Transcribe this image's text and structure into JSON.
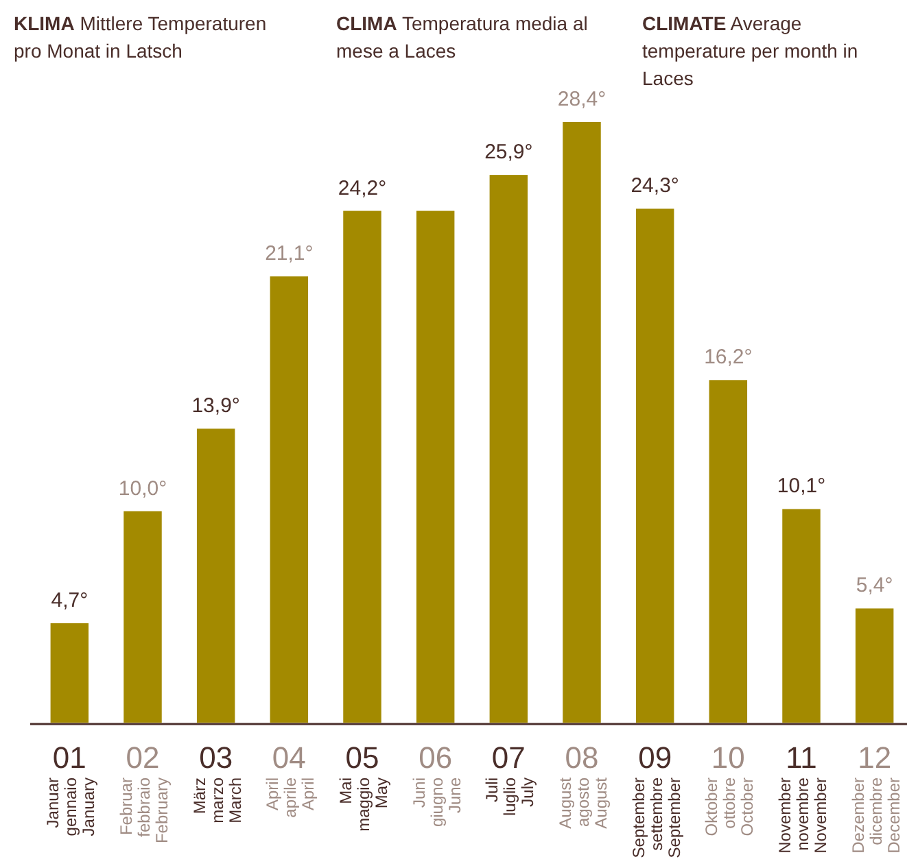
{
  "chart_data": {
    "type": "bar",
    "title": "KLIMA Mittlere Temperaturen pro Monat in Latsch",
    "subtitle": "CLIMA Temperatura media al mese a Laces",
    "annotations": [
      "CLIMATE Average temperature per month in Laces"
    ],
    "categories": [
      "01\nJanuar\ngennaio\nJanuary",
      "02\nFebruar\nfebbraio\nFebruary",
      "03\nMärz\nmarzo\nMarch",
      "04\nApril\naprile\nApril",
      "05\nMai\nmaggio\nMay",
      "06\nJuni\ngiugno\nJune",
      "07\nJuli\nluglio\nJuly",
      "08\nAugust\nagosto\nAugust",
      "09\nSeptember\nsettembre\nSeptember",
      "10\nOktober\nottobre\nOctober",
      "11\nNovember\nnovembre\nNovember",
      "12\nDezember\ndicembre\nDecember"
    ],
    "values": [
      4.7,
      10.0,
      13.9,
      21.1,
      24.2,
      24.2,
      25.9,
      28.4,
      24.3,
      16.2,
      10.1,
      5.4
    ],
    "value_labels": [
      "4,7°",
      "10,0°",
      "13,9°",
      "21,1°",
      "24,2°",
      null,
      "25,9°",
      "28,4°",
      "24,3°",
      "16,2°",
      "10,1°",
      "5,4°"
    ],
    "color": "#a38a00",
    "relative": false
  }
}
